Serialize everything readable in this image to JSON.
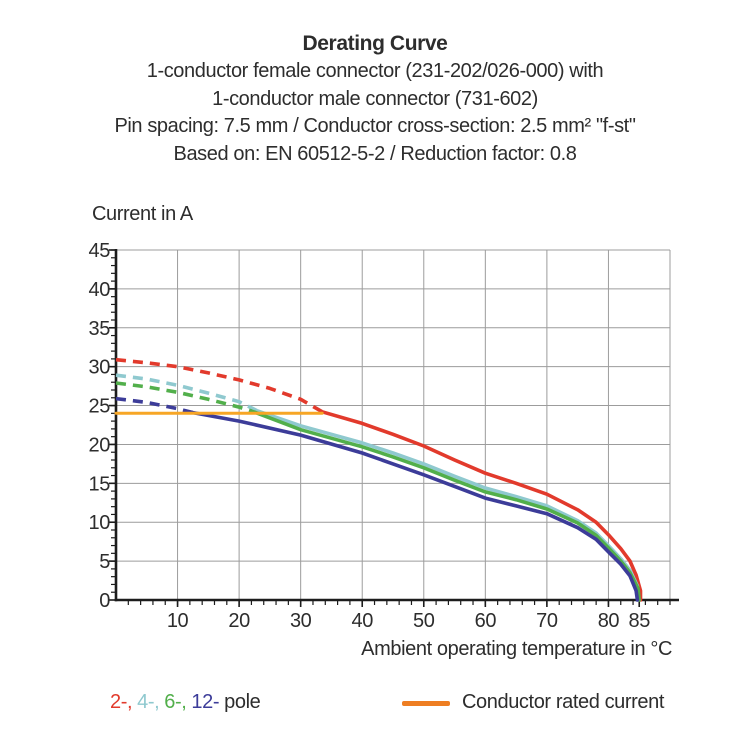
{
  "header": {
    "title": "Derating Curve",
    "line1": "1-conductor female connector (231-202/026-000) with",
    "line2": "1-conductor male connector (731-602)",
    "line3": "Pin spacing: 7.5 mm / Conductor cross-section: 2.5 mm² \"f-st\"",
    "line4": "Based on: EN 60512-5-2 / Reduction factor: 0.8"
  },
  "chart_data": {
    "type": "line",
    "title": "Derating Curve",
    "xlabel": "Ambient operating temperature in °C",
    "ylabel": "Current in A",
    "xlim": [
      0,
      90
    ],
    "ylim": [
      0,
      45
    ],
    "grid": true,
    "x_gridlines": [
      10,
      20,
      30,
      40,
      50,
      60,
      70,
      80,
      90
    ],
    "y_gridlines": [
      5,
      10,
      15,
      20,
      25,
      30,
      35,
      40,
      45
    ],
    "x_major_ticks": [
      10,
      20,
      30,
      40,
      50,
      60,
      70,
      80,
      85
    ],
    "y_major_ticks": [
      0,
      5,
      10,
      15,
      20,
      25,
      30,
      35,
      40,
      45
    ],
    "x_minor_step": 2,
    "y_minor_step": 1,
    "colors": {
      "grid": "#9c9c9c",
      "axis": "#1c1c1c",
      "text": "#2d2d2d",
      "pole2": "#e23a2c",
      "pole4": "#8fc9cf",
      "pole6": "#52af4b",
      "pole12": "#3c3c99",
      "rated": "#f7a625"
    },
    "series": [
      {
        "id": "pole2-dashed",
        "name": "2-pole (dashed, above rated current)",
        "color": "#e23a2c",
        "dashed": true,
        "points": [
          [
            0,
            30.9
          ],
          [
            5,
            30.5
          ],
          [
            10,
            30.0
          ],
          [
            15,
            29.2
          ],
          [
            20,
            28.3
          ],
          [
            25,
            27.2
          ],
          [
            30,
            25.8
          ],
          [
            33.5,
            24.2
          ]
        ]
      },
      {
        "id": "pole4-dashed",
        "name": "4-pole (dashed, above rated current)",
        "color": "#8fc9cf",
        "dashed": true,
        "points": [
          [
            0,
            28.9
          ],
          [
            5,
            28.4
          ],
          [
            10,
            27.6
          ],
          [
            15,
            26.6
          ],
          [
            20,
            25.5
          ],
          [
            23,
            24.3
          ]
        ]
      },
      {
        "id": "pole6-dashed",
        "name": "6-pole (dashed, above rated current)",
        "color": "#52af4b",
        "dashed": true,
        "points": [
          [
            0,
            27.9
          ],
          [
            5,
            27.4
          ],
          [
            10,
            26.7
          ],
          [
            15,
            25.8
          ],
          [
            20,
            24.8
          ],
          [
            22,
            24.3
          ]
        ]
      },
      {
        "id": "pole12-dashed",
        "name": "12-pole (dashed, above rated current)",
        "color": "#3c3c99",
        "dashed": true,
        "points": [
          [
            0,
            25.9
          ],
          [
            5,
            25.4
          ],
          [
            10,
            24.6
          ],
          [
            12.5,
            24.1
          ]
        ]
      },
      {
        "id": "pole2",
        "name": "2-pole",
        "color": "#e23a2c",
        "dashed": false,
        "points": [
          [
            33.5,
            24.2
          ],
          [
            40,
            22.7
          ],
          [
            45,
            21.3
          ],
          [
            50,
            19.8
          ],
          [
            55,
            18.0
          ],
          [
            60,
            16.3
          ],
          [
            65,
            15.0
          ],
          [
            70,
            13.6
          ],
          [
            75,
            11.6
          ],
          [
            78,
            10.0
          ],
          [
            80,
            8.4
          ],
          [
            82,
            6.6
          ],
          [
            83.5,
            5.0
          ],
          [
            84.5,
            3.2
          ],
          [
            85.2,
            1.2
          ],
          [
            85.2,
            0
          ]
        ]
      },
      {
        "id": "pole4",
        "name": "4-pole",
        "color": "#8fc9cf",
        "dashed": false,
        "points": [
          [
            23,
            24.3
          ],
          [
            30,
            22.4
          ],
          [
            40,
            20.2
          ],
          [
            45,
            18.9
          ],
          [
            50,
            17.5
          ],
          [
            55,
            15.9
          ],
          [
            60,
            14.4
          ],
          [
            65,
            13.3
          ],
          [
            70,
            12.1
          ],
          [
            75,
            10.2
          ],
          [
            78,
            8.6
          ],
          [
            80,
            7.0
          ],
          [
            82,
            5.3
          ],
          [
            83.5,
            3.8
          ],
          [
            84.7,
            1.8
          ],
          [
            84.9,
            0
          ]
        ]
      },
      {
        "id": "pole6",
        "name": "6-pole",
        "color": "#52af4b",
        "dashed": false,
        "points": [
          [
            22,
            24.3
          ],
          [
            30,
            21.9
          ],
          [
            40,
            19.7
          ],
          [
            45,
            18.4
          ],
          [
            50,
            17.0
          ],
          [
            55,
            15.4
          ],
          [
            60,
            13.9
          ],
          [
            65,
            12.9
          ],
          [
            70,
            11.7
          ],
          [
            75,
            9.9
          ],
          [
            78,
            8.3
          ],
          [
            80,
            6.7
          ],
          [
            82,
            5.0
          ],
          [
            83.5,
            3.5
          ],
          [
            84.8,
            1.5
          ],
          [
            85,
            0
          ]
        ]
      },
      {
        "id": "pole12",
        "name": "12-pole",
        "color": "#3c3c99",
        "dashed": false,
        "points": [
          [
            12.5,
            24.1
          ],
          [
            20,
            23.0
          ],
          [
            30,
            21.2
          ],
          [
            40,
            18.9
          ],
          [
            45,
            17.5
          ],
          [
            50,
            16.1
          ],
          [
            55,
            14.6
          ],
          [
            60,
            13.1
          ],
          [
            65,
            12.1
          ],
          [
            70,
            11.1
          ],
          [
            75,
            9.3
          ],
          [
            78,
            7.8
          ],
          [
            80,
            6.2
          ],
          [
            82,
            4.6
          ],
          [
            83.5,
            3.1
          ],
          [
            84.5,
            1.2
          ],
          [
            84.7,
            0
          ]
        ]
      },
      {
        "id": "rated-current",
        "name": "Conductor rated current",
        "color": "#f7a625",
        "dashed": false,
        "width": 3,
        "points": [
          [
            0,
            24
          ],
          [
            33.5,
            24
          ]
        ]
      }
    ]
  },
  "legend": {
    "poles": [
      {
        "label": "2-,",
        "color": "#e23a2c"
      },
      {
        "label": "4-,",
        "color": "#8fc9cf"
      },
      {
        "label": "6-,",
        "color": "#52af4b"
      },
      {
        "label": "12-",
        "color": "#3c3c99"
      }
    ],
    "pole_suffix": "pole",
    "rated": {
      "label": "Conductor rated current",
      "swatch_color": "#ee7e22"
    }
  }
}
